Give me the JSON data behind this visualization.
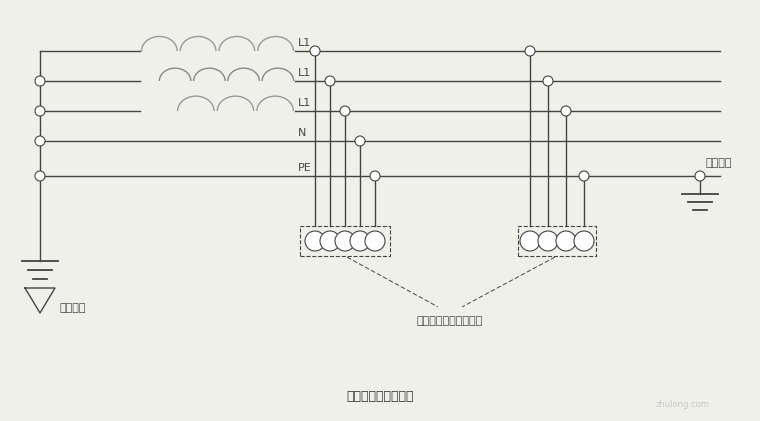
{
  "title": "临时用电线路的型式",
  "label_L1_1": "L1",
  "label_L1_2": "L1",
  "label_L1_3": "L1",
  "label_N": "N",
  "label_PE": "PE",
  "label_work_ground": "工作接地",
  "label_repeat_ground": "重复接地",
  "label_device": "电器设备外露导电部分",
  "bg_color": "#f0f0eb",
  "line_color": "#444444",
  "coil_color": "#888888",
  "fig_width": 7.6,
  "fig_height": 4.21,
  "dpi": 100
}
